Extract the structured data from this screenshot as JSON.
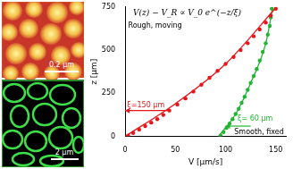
{
  "chart_data": {
    "type": "scatter",
    "x_label": "V [µm/s]",
    "y_label": "z [µm]",
    "xlim": [
      0,
      160
    ],
    "xticks": [
      0,
      50,
      100,
      150
    ],
    "ylim": [
      0,
      750
    ],
    "yticks": [
      0,
      250,
      500,
      750
    ],
    "grid": false,
    "series": [
      {
        "color": "#e8161b",
        "marker": "circle",
        "x": [
          3,
          8,
          14,
          20,
          26,
          32,
          38,
          44,
          52,
          60,
          68,
          76,
          84,
          92,
          100,
          108,
          115,
          122,
          128,
          134,
          140,
          145,
          150
        ],
        "values": [
          5,
          20,
          40,
          60,
          80,
          100,
          125,
          150,
          185,
          220,
          260,
          300,
          340,
          380,
          420,
          460,
          500,
          540,
          580,
          620,
          660,
          700,
          740
        ]
      },
      {
        "color": "#e8161b",
        "type": "line",
        "line_style": "solid",
        "x": [
          0,
          50,
          100,
          150
        ],
        "values": [
          0,
          190,
          420,
          745
        ]
      },
      {
        "color": "#22b532",
        "marker": "circle",
        "x": [
          95,
          98,
          101,
          104,
          107,
          110,
          113,
          116,
          119,
          122,
          125,
          128,
          131,
          134,
          137,
          140,
          142,
          144,
          145,
          146
        ],
        "values": [
          5,
          25,
          50,
          75,
          100,
          130,
          160,
          195,
          230,
          270,
          310,
          350,
          390,
          440,
          490,
          540,
          590,
          640,
          690,
          740
        ]
      },
      {
        "color": "#22b532",
        "type": "line",
        "line_style": "solid",
        "x": [
          93,
          110,
          125,
          140,
          147
        ],
        "values": [
          0,
          130,
          310,
          540,
          750
        ]
      }
    ],
    "annotations": [
      {
        "text": "V(z) − V_R ∝ V_0 e^(−z/ξ)",
        "x": 8,
        "y": 715
      },
      {
        "text": "Rough, moving",
        "x": 3,
        "y": 640
      },
      {
        "text": "Smooth, fixed",
        "x": 158,
        "y": 25
      }
    ],
    "arrows": [
      {
        "text": "ξ=150 µm",
        "color": "#e8161b",
        "x": [
          45,
          0
        ],
        "y": 150,
        "text_x": 2,
        "text_y": 180
      },
      {
        "text": "ξ= 60 µm",
        "color": "#22b532",
        "x": [
          125,
          100
        ],
        "y": 60,
        "text_x": 112,
        "text_y": 100
      }
    ]
  },
  "images": [
    {
      "scale_bar": "0.2 µm"
    },
    {
      "scale_bar": "2 µm"
    }
  ]
}
